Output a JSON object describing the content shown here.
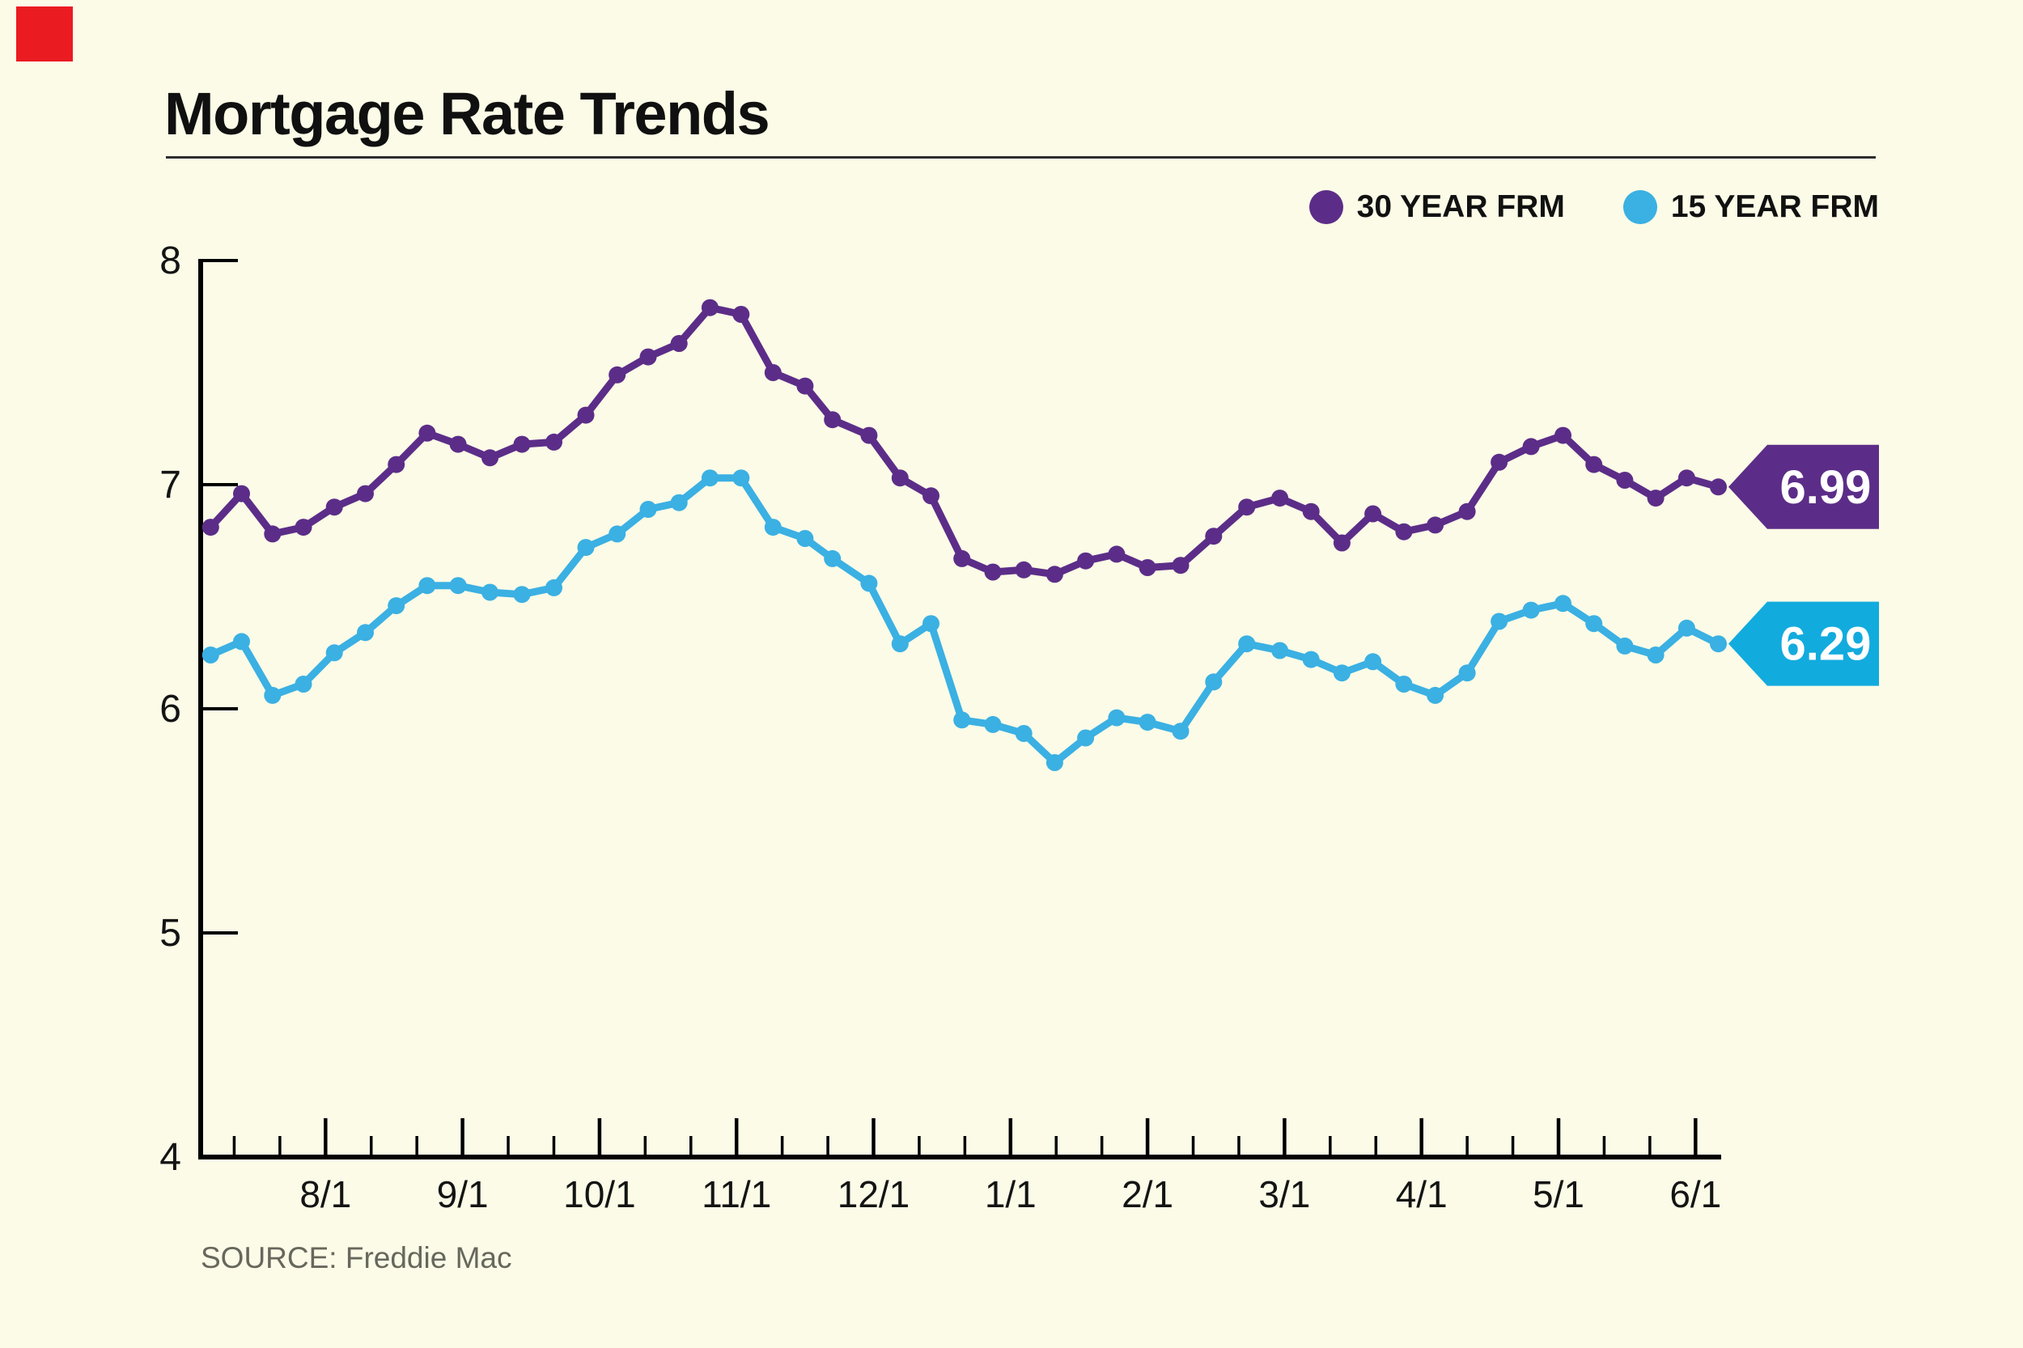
{
  "page": {
    "background": "#FBFBE7",
    "logo_color": "#EB1B22"
  },
  "header": {
    "title": "Mortgage Rate Trends"
  },
  "legend": [
    {
      "label": "30 YEAR FRM",
      "color": "#5C2D88"
    },
    {
      "label": "15 YEAR FRM",
      "color": "#3BB0E3"
    }
  ],
  "source": "SOURCE: Freddie Mac",
  "chart_data": {
    "type": "line",
    "title": "Mortgage Rate Trends",
    "xlabel": "",
    "ylabel": "",
    "ylim": [
      4,
      8
    ],
    "yticks": [
      8,
      7,
      6,
      5,
      4
    ],
    "xticks": [
      "8/1",
      "9/1",
      "10/1",
      "11/1",
      "12/1",
      "1/1",
      "2/1",
      "3/1",
      "4/1",
      "5/1",
      "6/1"
    ],
    "grid": false,
    "legend_position": "top-right",
    "x": [
      "2023-07-06",
      "2023-07-13",
      "2023-07-20",
      "2023-07-27",
      "2023-08-03",
      "2023-08-10",
      "2023-08-17",
      "2023-08-24",
      "2023-08-31",
      "2023-09-07",
      "2023-09-14",
      "2023-09-21",
      "2023-09-28",
      "2023-10-05",
      "2023-10-12",
      "2023-10-19",
      "2023-10-26",
      "2023-11-02",
      "2023-11-09",
      "2023-11-16",
      "2023-11-22",
      "2023-11-30",
      "2023-12-07",
      "2023-12-14",
      "2023-12-21",
      "2023-12-28",
      "2024-01-04",
      "2024-01-11",
      "2024-01-18",
      "2024-01-25",
      "2024-02-01",
      "2024-02-08",
      "2024-02-15",
      "2024-02-22",
      "2024-02-29",
      "2024-03-07",
      "2024-03-14",
      "2024-03-21",
      "2024-03-28",
      "2024-04-04",
      "2024-04-11",
      "2024-04-18",
      "2024-04-25",
      "2024-05-02",
      "2024-05-09",
      "2024-05-16",
      "2024-05-23",
      "2024-05-30",
      "2024-06-06"
    ],
    "series": [
      {
        "name": "30 YEAR FRM",
        "color": "#5C2D88",
        "callout": "6.99",
        "values": [
          6.81,
          6.96,
          6.78,
          6.81,
          6.9,
          6.96,
          7.09,
          7.23,
          7.18,
          7.12,
          7.18,
          7.19,
          7.31,
          7.49,
          7.57,
          7.63,
          7.79,
          7.76,
          7.5,
          7.44,
          7.29,
          7.22,
          7.03,
          6.95,
          6.67,
          6.61,
          6.62,
          6.6,
          6.66,
          6.69,
          6.63,
          6.64,
          6.77,
          6.9,
          6.94,
          6.88,
          6.74,
          6.87,
          6.79,
          6.82,
          6.88,
          7.1,
          7.17,
          7.22,
          7.09,
          7.02,
          6.94,
          7.03,
          6.99
        ]
      },
      {
        "name": "15 YEAR FRM",
        "color": "#3BB0E3",
        "callout_color": "#12ABDE",
        "callout": "6.29",
        "values": [
          6.24,
          6.3,
          6.06,
          6.11,
          6.25,
          6.34,
          6.46,
          6.55,
          6.55,
          6.52,
          6.51,
          6.54,
          6.72,
          6.78,
          6.89,
          6.92,
          7.03,
          7.03,
          6.81,
          6.76,
          6.67,
          6.56,
          6.29,
          6.38,
          5.95,
          5.93,
          5.89,
          5.76,
          5.87,
          5.96,
          5.94,
          5.9,
          6.12,
          6.29,
          6.26,
          6.22,
          6.16,
          6.21,
          6.11,
          6.06,
          6.16,
          6.39,
          6.44,
          6.47,
          6.38,
          6.28,
          6.24,
          6.36,
          6.29
        ]
      }
    ]
  }
}
